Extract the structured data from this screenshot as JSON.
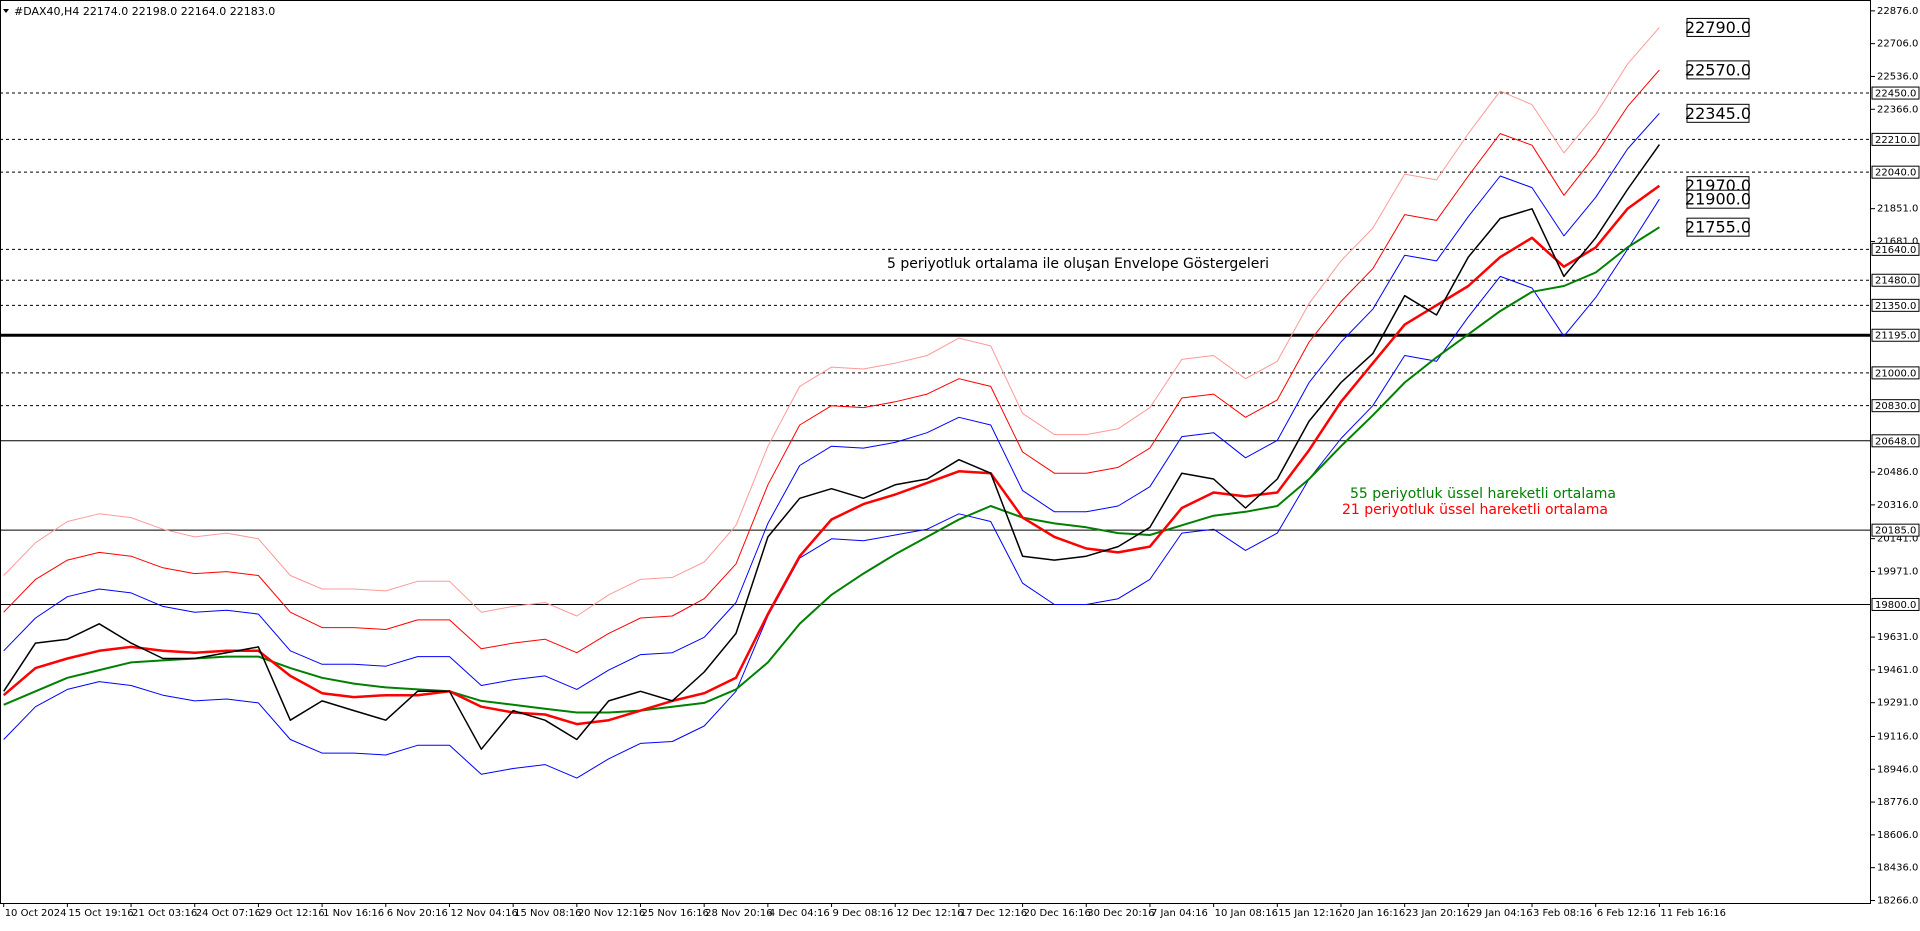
{
  "chart_data": {
    "type": "line",
    "header": "#DAX40,H4  22174.0 22198.0 22164.0 22183.0",
    "categories": [
      "10 Oct 2024",
      null,
      "15 Oct 19:16",
      null,
      "21 Oct 03:16",
      null,
      "24 Oct 07:16",
      null,
      "29 Oct 12:16",
      null,
      "1 Nov 16:16",
      null,
      "6 Nov 20:16",
      null,
      "12 Nov 04:16",
      null,
      "15 Nov 08:16",
      null,
      "20 Nov 12:16",
      null,
      "25 Nov 16:16",
      null,
      "28 Nov 20:16",
      null,
      "4 Dec 04:16",
      null,
      "9 Dec 08:16",
      null,
      "12 Dec 12:16",
      null,
      "17 Dec 12:16",
      null,
      "20 Dec 16:16",
      null,
      "30 Dec 20:16",
      null,
      "7 Jan 04:16",
      null,
      "10 Jan 08:16",
      null,
      "15 Jan 12:16",
      null,
      "20 Jan 16:16",
      null,
      "23 Jan 20:16",
      null,
      "29 Jan 04:16",
      null,
      "3 Feb 08:16",
      null,
      "6 Feb 12:16",
      null,
      "11 Feb 16:16"
    ],
    "ylim": [
      18253,
      22927
    ],
    "yticks": [
      {
        "value": 22876,
        "label": "22876.0"
      },
      {
        "value": 22706,
        "label": "22706.0"
      },
      {
        "value": 22536,
        "label": "22536.0"
      },
      {
        "value": 22366,
        "label": "22366.0"
      },
      {
        "value": 21851,
        "label": "21851.0"
      },
      {
        "value": 21681,
        "label": "21681.0"
      },
      {
        "value": 20486,
        "label": "20486.0"
      },
      {
        "value": 20316,
        "label": "20316.0"
      },
      {
        "value": 20141,
        "label": "20141.0"
      },
      {
        "value": 19971,
        "label": "19971.0"
      },
      {
        "value": 19631,
        "label": "19631.0"
      },
      {
        "value": 19461,
        "label": "19461.0"
      },
      {
        "value": 19291,
        "label": "19291.0"
      },
      {
        "value": 19116,
        "label": "19116.0"
      },
      {
        "value": 18946,
        "label": "18946.0"
      },
      {
        "value": 18776,
        "label": "18776.0"
      },
      {
        "value": 18606,
        "label": "18606.0"
      },
      {
        "value": 18436,
        "label": "18436.0"
      },
      {
        "value": 18266,
        "label": "18266.0"
      }
    ],
    "levels": [
      {
        "value": 22450,
        "label": "22450.0",
        "style": "dashed"
      },
      {
        "value": 22210,
        "label": "22210.0",
        "style": "dashed"
      },
      {
        "value": 22040,
        "label": "22040.0",
        "style": "dashed"
      },
      {
        "value": 21640,
        "label": "21640.0",
        "style": "dashed"
      },
      {
        "value": 21480,
        "label": "21480.0",
        "style": "dashed"
      },
      {
        "value": 21350,
        "label": "21350.0",
        "style": "dashed"
      },
      {
        "value": 21195,
        "label": "21195.0",
        "style": "thick"
      },
      {
        "value": 21000,
        "label": "21000.0",
        "style": "dashed"
      },
      {
        "value": 20830,
        "label": "20830.0",
        "style": "dashed"
      },
      {
        "value": 20648,
        "label": "20648.0",
        "style": "solid"
      },
      {
        "value": 20185,
        "label": "20185.0",
        "style": "solid"
      },
      {
        "value": 19800,
        "label": "19800.0",
        "style": "solid"
      }
    ],
    "price_tags": [
      {
        "value": 22790,
        "label": "22790.0"
      },
      {
        "value": 22570,
        "label": "22570.0"
      },
      {
        "value": 22345,
        "label": "22345.0"
      },
      {
        "value": 21970,
        "label": "21970.0"
      },
      {
        "value": 21900,
        "label": "21900.0"
      },
      {
        "value": 21755,
        "label": "21755.0"
      }
    ],
    "series": [
      {
        "color": "#ff9999",
        "width": 1,
        "values": [
          19950,
          20120,
          20230,
          20270,
          20250,
          20190,
          20150,
          20170,
          20140,
          19950,
          19880,
          19880,
          19870,
          19920,
          19920,
          19760,
          19790,
          19810,
          19740,
          19850,
          19930,
          19940,
          20020,
          20210,
          20620,
          20930,
          21030,
          21020,
          21050,
          21090,
          21180,
          21140,
          20790,
          20680,
          20680,
          20710,
          20820,
          21070,
          21090,
          20970,
          21060,
          21360,
          21580,
          21750,
          22030,
          22000,
          22240,
          22460,
          22390,
          22140,
          22340,
          22600,
          22790
        ]
      },
      {
        "color": "#ff0000",
        "width": 1,
        "values": [
          19760,
          19930,
          20030,
          20070,
          20050,
          19990,
          19960,
          19970,
          19950,
          19760,
          19680,
          19680,
          19670,
          19720,
          19720,
          19570,
          19600,
          19620,
          19550,
          19650,
          19730,
          19740,
          19830,
          20010,
          20420,
          20730,
          20830,
          20820,
          20850,
          20890,
          20970,
          20930,
          20590,
          20480,
          20480,
          20510,
          20610,
          20870,
          20890,
          20770,
          20860,
          21160,
          21370,
          21540,
          21820,
          21790,
          22020,
          22240,
          22180,
          21920,
          22130,
          22380,
          22570
        ]
      },
      {
        "color": "#0000ff",
        "width": 1,
        "values": [
          19560,
          19730,
          19840,
          19880,
          19860,
          19790,
          19760,
          19770,
          19750,
          19560,
          19490,
          19490,
          19480,
          19530,
          19530,
          19380,
          19410,
          19430,
          19360,
          19460,
          19540,
          19550,
          19630,
          19810,
          20220,
          20520,
          20620,
          20610,
          20640,
          20690,
          20770,
          20730,
          20390,
          20280,
          20280,
          20310,
          20410,
          20670,
          20690,
          20560,
          20650,
          20950,
          21160,
          21330,
          21610,
          21580,
          21810,
          22020,
          21960,
          21710,
          21910,
          22160,
          22345
        ]
      },
      {
        "color": "#0000ff",
        "width": 1,
        "values": [
          19100,
          19270,
          19360,
          19400,
          19380,
          19330,
          19300,
          19310,
          19290,
          19100,
          19030,
          19030,
          19020,
          19070,
          19070,
          18920,
          18950,
          18970,
          18900,
          19000,
          19080,
          19090,
          19170,
          19350,
          19740,
          20040,
          20140,
          20130,
          20160,
          20190,
          20270,
          20230,
          19910,
          19800,
          19800,
          19830,
          19930,
          20170,
          20190,
          20080,
          20170,
          20450,
          20660,
          20830,
          21090,
          21060,
          21290,
          21500,
          21440,
          21190,
          21390,
          21640,
          21900
        ]
      },
      {
        "color": "#008000",
        "width": 2,
        "values": [
          19280,
          19350,
          19420,
          19460,
          19500,
          19510,
          19520,
          19530,
          19530,
          19470,
          19420,
          19390,
          19370,
          19360,
          19350,
          19300,
          19280,
          19260,
          19240,
          19240,
          19250,
          19270,
          19290,
          19360,
          19500,
          19700,
          19850,
          19960,
          20060,
          20150,
          20240,
          20310,
          20250,
          20220,
          20200,
          20170,
          20160,
          20210,
          20260,
          20280,
          20310,
          20450,
          20620,
          20780,
          20950,
          21080,
          21200,
          21320,
          21420,
          21450,
          21520,
          21650,
          21755
        ]
      },
      {
        "color": "#ff0000",
        "width": 2.5,
        "values": [
          19330,
          19470,
          19520,
          19560,
          19580,
          19560,
          19550,
          19560,
          19560,
          19430,
          19340,
          19320,
          19330,
          19330,
          19350,
          19270,
          19240,
          19230,
          19180,
          19200,
          19250,
          19300,
          19340,
          19420,
          19750,
          20050,
          20240,
          20320,
          20370,
          20430,
          20490,
          20480,
          20250,
          20150,
          20090,
          20070,
          20100,
          20300,
          20380,
          20360,
          20380,
          20600,
          20850,
          21050,
          21250,
          21350,
          21450,
          21600,
          21700,
          21550,
          21650,
          21850,
          21970
        ]
      },
      {
        "color": "#000000",
        "width": 1.5,
        "values": [
          19350,
          19600,
          19620,
          19700,
          19600,
          19520,
          19520,
          19550,
          19580,
          19200,
          19300,
          19250,
          19200,
          19350,
          19350,
          19050,
          19250,
          19200,
          19100,
          19300,
          19350,
          19300,
          19450,
          19650,
          20150,
          20350,
          20400,
          20350,
          20420,
          20450,
          20550,
          20480,
          20050,
          20030,
          20050,
          20100,
          20200,
          20480,
          20450,
          20300,
          20450,
          20750,
          20950,
          21100,
          21400,
          21300,
          21600,
          21800,
          21850,
          21500,
          21700,
          21950,
          22183
        ]
      }
    ],
    "annotations": [
      {
        "text": "5 periyotluk ortalama ile oluşan Envelope Göstergeleri",
        "color": "#000000"
      },
      {
        "text": "55 periyotluk üssel hareketli ortalama",
        "color": "#008000"
      },
      {
        "text": "21 periyotluk üssel hareketli ortalama",
        "color": "#ff0000"
      }
    ]
  }
}
